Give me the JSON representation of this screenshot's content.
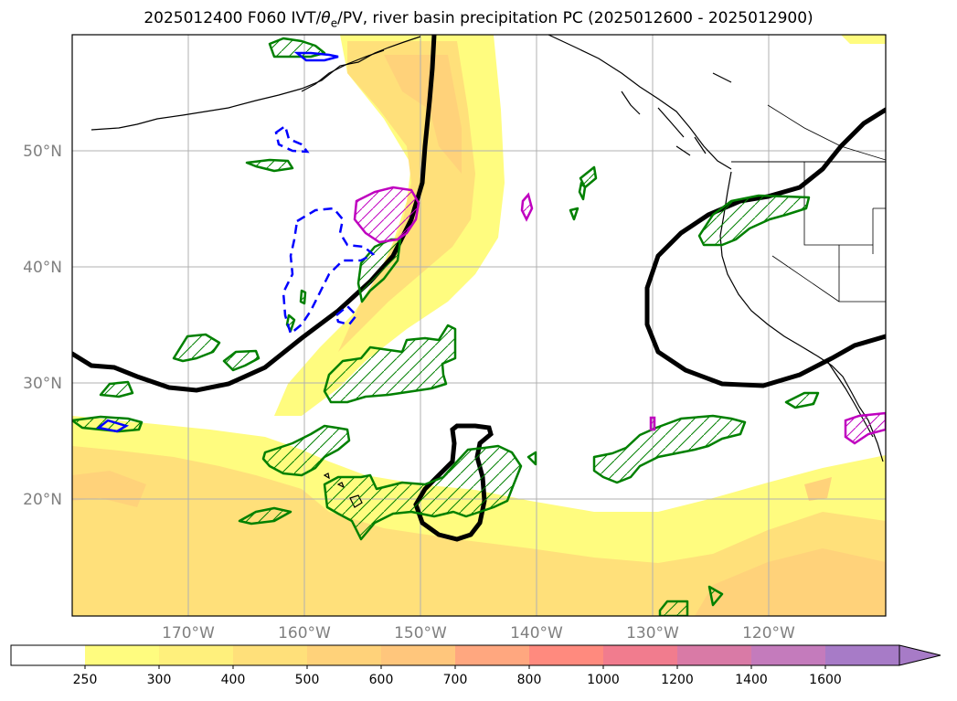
{
  "title": {
    "prefix": "2025012400 F060 IVT/",
    "theta": "θ",
    "theta_sub": "e",
    "suffix": "/PV, river basin precipitation PC (2025012600 - 2025012900)"
  },
  "map": {
    "lon_ticks": [
      "170°W",
      "160°W",
      "150°W",
      "140°W",
      "130°W",
      "120°W"
    ],
    "lat_ticks": [
      "50°N",
      "40°N",
      "30°N",
      "20°N"
    ]
  },
  "colorbar": {
    "levels": [
      "250",
      "300",
      "400",
      "500",
      "600",
      "700",
      "800",
      "1000",
      "1200",
      "1400",
      "1600"
    ],
    "colors": [
      "#ffffff",
      "#fffc7f",
      "#fff07c",
      "#ffe07a",
      "#ffd27a",
      "#ffc67c",
      "#ffa77f",
      "#ff8a7e",
      "#f17c8e",
      "#d97aa6",
      "#c47bbc",
      "#a77bc7"
    ],
    "extend": "max"
  },
  "overlay_colors": {
    "theta_e": "#000000",
    "precip_pc": "#008000",
    "pv_positive": "#bf00bf",
    "pv_negative": "#0000ff",
    "coastline": "#000000"
  }
}
